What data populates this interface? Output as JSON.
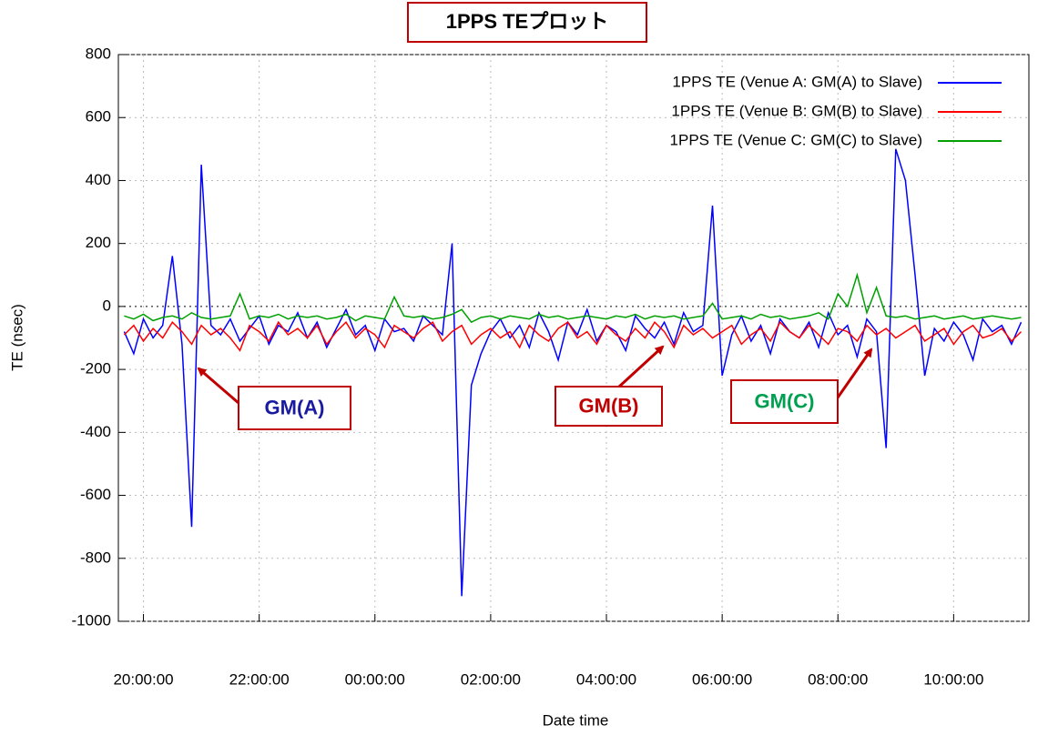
{
  "chart_data": {
    "type": "line",
    "title": "1PPS TEプロット",
    "xlabel": "Date time",
    "ylabel": "TE (nsec)",
    "x": [
      "19:40:00",
      "19:50:00",
      "20:00:00",
      "20:10:00",
      "20:20:00",
      "20:30:00",
      "20:40:00",
      "20:50:00",
      "21:00:00",
      "21:10:00",
      "21:20:00",
      "21:30:00",
      "21:40:00",
      "21:50:00",
      "22:00:00",
      "22:10:00",
      "22:20:00",
      "22:30:00",
      "22:40:00",
      "22:50:00",
      "23:00:00",
      "23:10:00",
      "23:20:00",
      "23:30:00",
      "23:40:00",
      "23:50:00",
      "00:00:00",
      "00:10:00",
      "00:20:00",
      "00:30:00",
      "00:40:00",
      "00:50:00",
      "01:00:00",
      "01:10:00",
      "01:20:00",
      "01:30:00",
      "01:40:00",
      "01:50:00",
      "02:00:00",
      "02:10:00",
      "02:20:00",
      "02:30:00",
      "02:40:00",
      "02:50:00",
      "03:00:00",
      "03:10:00",
      "03:20:00",
      "03:30:00",
      "03:40:00",
      "03:50:00",
      "04:00:00",
      "04:10:00",
      "04:20:00",
      "04:30:00",
      "04:40:00",
      "04:50:00",
      "05:00:00",
      "05:10:00",
      "05:20:00",
      "05:30:00",
      "05:40:00",
      "05:50:00",
      "06:00:00",
      "06:10:00",
      "06:20:00",
      "06:30:00",
      "06:40:00",
      "06:50:00",
      "07:00:00",
      "07:10:00",
      "07:20:00",
      "07:30:00",
      "07:40:00",
      "07:50:00",
      "08:00:00",
      "08:10:00",
      "08:20:00",
      "08:30:00",
      "08:40:00",
      "08:50:00",
      "09:00:00",
      "09:10:00",
      "09:20:00",
      "09:30:00",
      "09:40:00",
      "09:50:00",
      "10:00:00",
      "10:10:00",
      "10:20:00",
      "10:30:00",
      "10:40:00",
      "10:50:00",
      "11:00:00",
      "11:10:00"
    ],
    "series": [
      {
        "name": "1PPS TE (Venue A: GM(A) to Slave)",
        "color": "#0000ff",
        "values": [
          -80,
          -150,
          -40,
          -100,
          -60,
          160,
          -120,
          -700,
          450,
          -60,
          -90,
          -40,
          -110,
          -70,
          -30,
          -120,
          -60,
          -80,
          -20,
          -100,
          -50,
          -130,
          -70,
          -10,
          -90,
          -60,
          -140,
          -40,
          -80,
          -70,
          -110,
          -30,
          -60,
          -90,
          200,
          -920,
          -250,
          -150,
          -80,
          -40,
          -100,
          -60,
          -130,
          -20,
          -80,
          -170,
          -50,
          -90,
          -10,
          -110,
          -60,
          -80,
          -140,
          -30,
          -70,
          -100,
          -50,
          -120,
          -20,
          -80,
          -60,
          320,
          -220,
          -90,
          -30,
          -110,
          -60,
          -150,
          -40,
          -80,
          -100,
          -50,
          -130,
          -20,
          -90,
          -60,
          -160,
          -40,
          -80,
          -450,
          500,
          400,
          100,
          -220,
          -70,
          -110,
          -50,
          -90,
          -170,
          -40,
          -80,
          -60,
          -120,
          -50
        ]
      },
      {
        "name": "1PPS TE (Venue B: GM(B) to Slave)",
        "color": "#ff0000",
        "values": [
          -90,
          -60,
          -110,
          -70,
          -100,
          -50,
          -80,
          -120,
          -60,
          -90,
          -70,
          -100,
          -140,
          -60,
          -80,
          -110,
          -50,
          -90,
          -70,
          -100,
          -60,
          -120,
          -80,
          -50,
          -100,
          -70,
          -90,
          -130,
          -60,
          -80,
          -100,
          -70,
          -50,
          -110,
          -80,
          -60,
          -120,
          -90,
          -70,
          -100,
          -80,
          -130,
          -60,
          -90,
          -110,
          -70,
          -50,
          -100,
          -80,
          -120,
          -60,
          -90,
          -110,
          -70,
          -100,
          -50,
          -80,
          -130,
          -60,
          -90,
          -70,
          -100,
          -80,
          -60,
          -120,
          -90,
          -70,
          -110,
          -50,
          -80,
          -100,
          -60,
          -90,
          -120,
          -70,
          -80,
          -110,
          -60,
          -90,
          -70,
          -100,
          -80,
          -60,
          -110,
          -90,
          -70,
          -120,
          -80,
          -60,
          -100,
          -90,
          -70,
          -110,
          -80
        ]
      },
      {
        "name": "1PPS TE (Venue C: GM(C) to Slave)",
        "color": "#00a000",
        "values": [
          -30,
          -40,
          -25,
          -45,
          -35,
          -30,
          -40,
          -20,
          -35,
          -40,
          -35,
          -30,
          40,
          -40,
          -30,
          -35,
          -25,
          -40,
          -30,
          -35,
          -30,
          -40,
          -35,
          -25,
          -45,
          -30,
          -35,
          -40,
          30,
          -30,
          -35,
          -30,
          -40,
          -35,
          -25,
          -10,
          -50,
          -35,
          -30,
          -40,
          -30,
          -35,
          -40,
          -25,
          -35,
          -30,
          -40,
          -35,
          -30,
          -35,
          -40,
          -30,
          -35,
          -25,
          -40,
          -30,
          -35,
          -30,
          -40,
          -35,
          -30,
          10,
          -40,
          -35,
          -30,
          -40,
          -25,
          -35,
          -30,
          -40,
          -35,
          -30,
          -20,
          -40,
          40,
          0,
          100,
          -20,
          60,
          -30,
          -35,
          -30,
          -40,
          -35,
          -30,
          -40,
          -35,
          -30,
          -40,
          -35,
          -30,
          -35,
          -40,
          -35
        ]
      }
    ],
    "xlim": [
      "19:34:00",
      "11:18:00"
    ],
    "xticks": [
      "20:00:00",
      "22:00:00",
      "00:00:00",
      "02:00:00",
      "04:00:00",
      "06:00:00",
      "08:00:00",
      "10:00:00"
    ],
    "ylim": [
      -1000,
      800
    ],
    "yticks": [
      -1000,
      -800,
      -600,
      -400,
      -200,
      0,
      200,
      400,
      600,
      800
    ],
    "grid": true,
    "legend": "upper right",
    "annotations": [
      {
        "text": "GM(A)",
        "color": "#1a1aa0"
      },
      {
        "text": "GM(B)",
        "color": "#c00000"
      },
      {
        "text": "GM(C)",
        "color": "#00a050"
      }
    ]
  }
}
